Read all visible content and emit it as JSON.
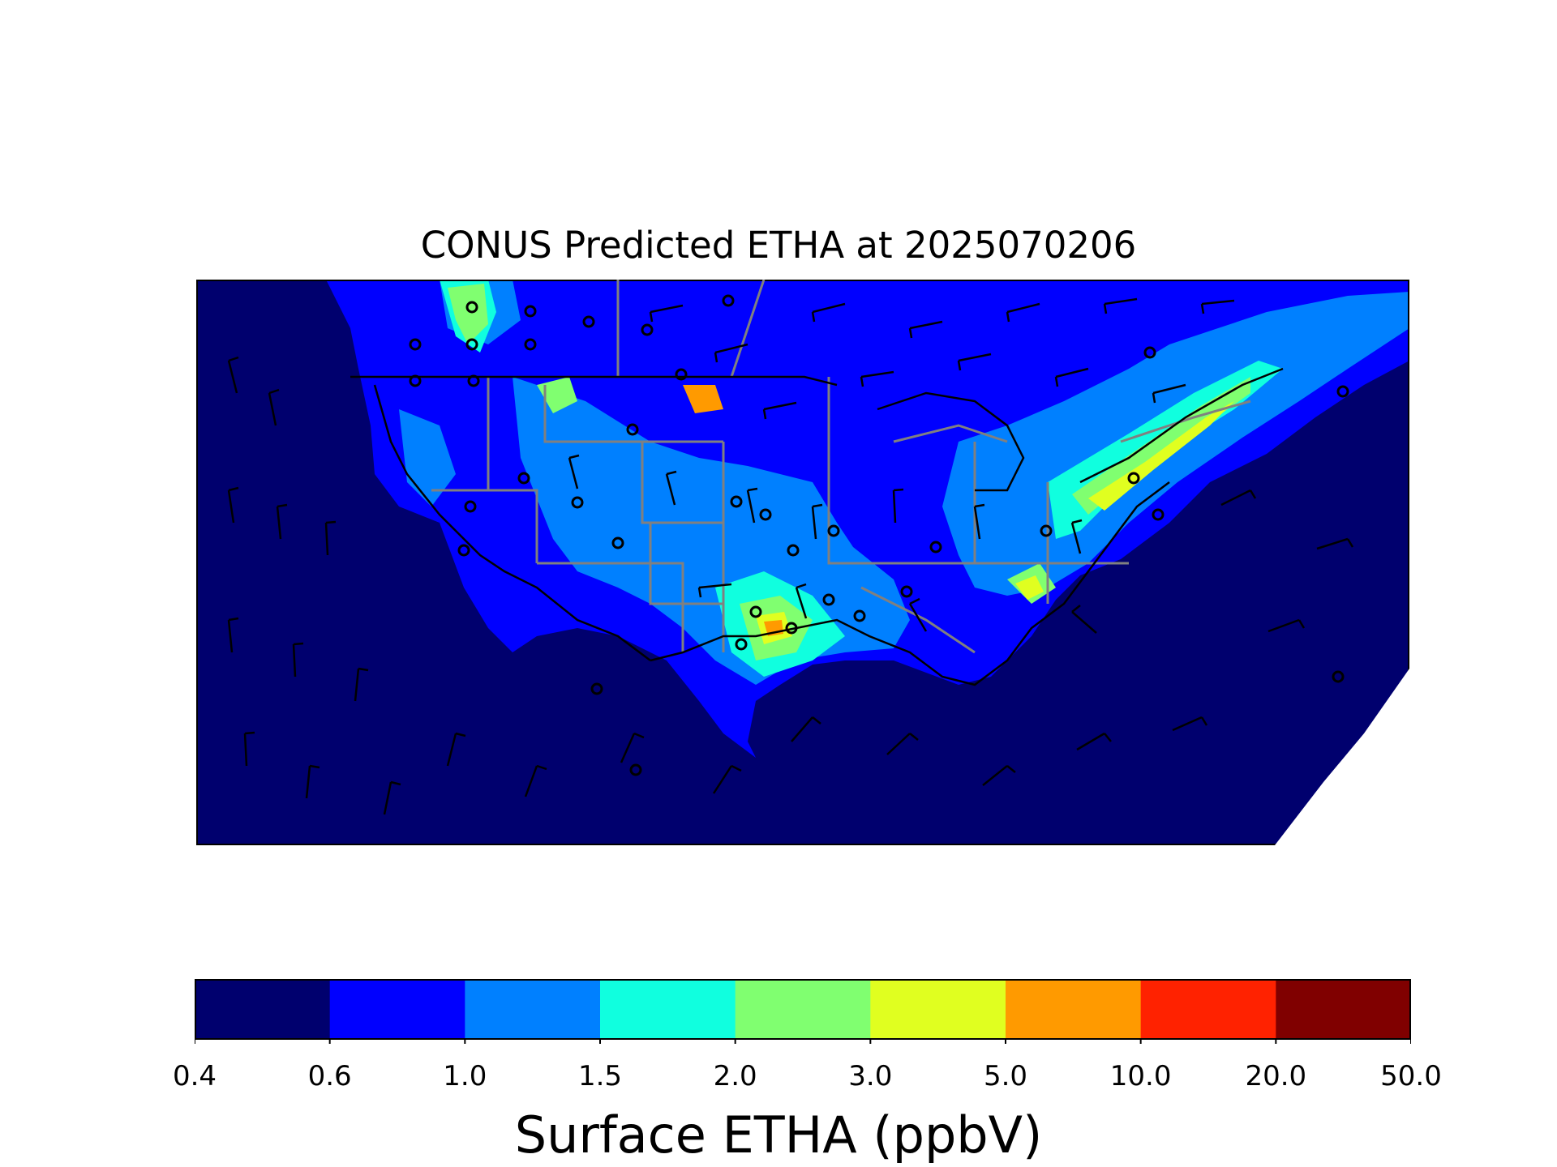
{
  "title": "CONUS Predicted ETHA at 2025070206",
  "colorbar": {
    "label": "Surface ETHA (ppbV)",
    "bounds": [
      "0.4",
      "0.6",
      "1.0",
      "1.5",
      "2.0",
      "3.0",
      "5.0",
      "10.0",
      "20.0",
      "50.0"
    ],
    "colors": [
      "#00006e",
      "#0000ff",
      "#0080ff",
      "#10ffdf",
      "#80ff70",
      "#e0ff20",
      "#ff9a00",
      "#ff2200",
      "#800000"
    ]
  },
  "map": {
    "background_color": "#00006e",
    "land_color": "#0000ff",
    "coastline_color": "#000000",
    "state_border_color": "#808080",
    "markers": "open circles (observation sites)",
    "vectors": "black wind barbs"
  }
}
